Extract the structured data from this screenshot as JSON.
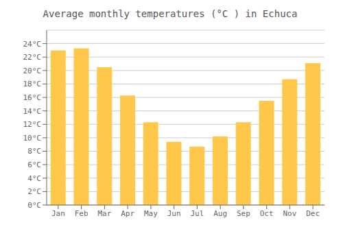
{
  "chart_data": {
    "type": "bar",
    "title": "Average monthly temperatures (°C ) in Echuca",
    "categories": [
      "Jan",
      "Feb",
      "Mar",
      "Apr",
      "May",
      "Jun",
      "Jul",
      "Aug",
      "Sep",
      "Oct",
      "Nov",
      "Dec"
    ],
    "values": [
      23.0,
      23.3,
      20.5,
      16.3,
      12.3,
      9.4,
      8.7,
      10.2,
      12.3,
      15.5,
      18.7,
      21.1
    ],
    "color": "#FFC84A",
    "ylim": [
      0,
      26
    ],
    "yticks": [
      {
        "value": 0,
        "label": "0°C"
      },
      {
        "value": 2,
        "label": "2°C"
      },
      {
        "value": 4,
        "label": "4°C"
      },
      {
        "value": 6,
        "label": "6°C"
      },
      {
        "value": 8,
        "label": "8°C"
      },
      {
        "value": 10,
        "label": "10°C"
      },
      {
        "value": 12,
        "label": "12°C"
      },
      {
        "value": 14,
        "label": "14°C"
      },
      {
        "value": 16,
        "label": "16°C"
      },
      {
        "value": 18,
        "label": "18°C"
      },
      {
        "value": 20,
        "label": "20°C"
      },
      {
        "value": 22,
        "label": "22°C"
      },
      {
        "value": 24,
        "label": "24°C"
      }
    ],
    "grid": true
  }
}
